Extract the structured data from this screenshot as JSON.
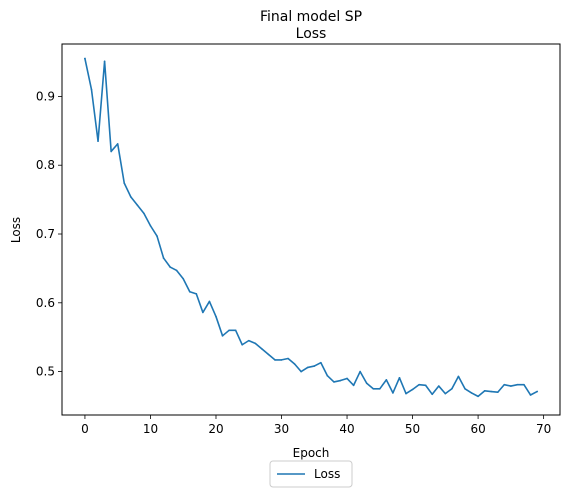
{
  "chart_data": {
    "type": "line",
    "title": "Final model SP",
    "subtitle": "Loss",
    "xlabel": "Epoch",
    "ylabel": "Loss",
    "xlim": [
      -3.5,
      72.5
    ],
    "ylim": [
      0.4369,
      0.9762
    ],
    "xticks": [
      0,
      10,
      20,
      30,
      40,
      50,
      60,
      70
    ],
    "yticks": [
      0.5,
      0.6,
      0.7,
      0.8,
      0.9
    ],
    "ytick_labels": [
      "0.5",
      "0.6",
      "0.7",
      "0.8",
      "0.9"
    ],
    "legend_position": "below plot, centered",
    "grid": false,
    "series": [
      {
        "name": "Loss",
        "color": "#1f77b4",
        "x": [
          0,
          1,
          2,
          3,
          4,
          5,
          6,
          7,
          8,
          9,
          10,
          11,
          12,
          13,
          14,
          15,
          16,
          17,
          18,
          19,
          20,
          21,
          22,
          23,
          24,
          25,
          26,
          27,
          28,
          29,
          30,
          31,
          32,
          33,
          34,
          35,
          36,
          37,
          38,
          39,
          40,
          41,
          42,
          43,
          44,
          45,
          46,
          47,
          48,
          49,
          50,
          51,
          52,
          53,
          54,
          55,
          56,
          57,
          58,
          59,
          60,
          61,
          62,
          63,
          64,
          65,
          66,
          67,
          68,
          69
        ],
        "values": [
          0.955,
          0.91,
          0.835,
          0.951,
          0.82,
          0.831,
          0.774,
          0.754,
          0.742,
          0.73,
          0.712,
          0.697,
          0.665,
          0.652,
          0.647,
          0.635,
          0.616,
          0.613,
          0.586,
          0.602,
          0.58,
          0.552,
          0.56,
          0.56,
          0.539,
          0.545,
          0.541,
          0.533,
          0.525,
          0.517,
          0.517,
          0.519,
          0.511,
          0.5,
          0.506,
          0.508,
          0.513,
          0.494,
          0.485,
          0.487,
          0.49,
          0.48,
          0.5,
          0.483,
          0.475,
          0.475,
          0.488,
          0.469,
          0.491,
          0.468,
          0.474,
          0.481,
          0.48,
          0.467,
          0.479,
          0.468,
          0.475,
          0.493,
          0.475,
          0.469,
          0.464,
          0.472,
          0.471,
          0.47,
          0.481,
          0.479,
          0.481,
          0.481,
          0.466,
          0.471
        ]
      }
    ]
  }
}
